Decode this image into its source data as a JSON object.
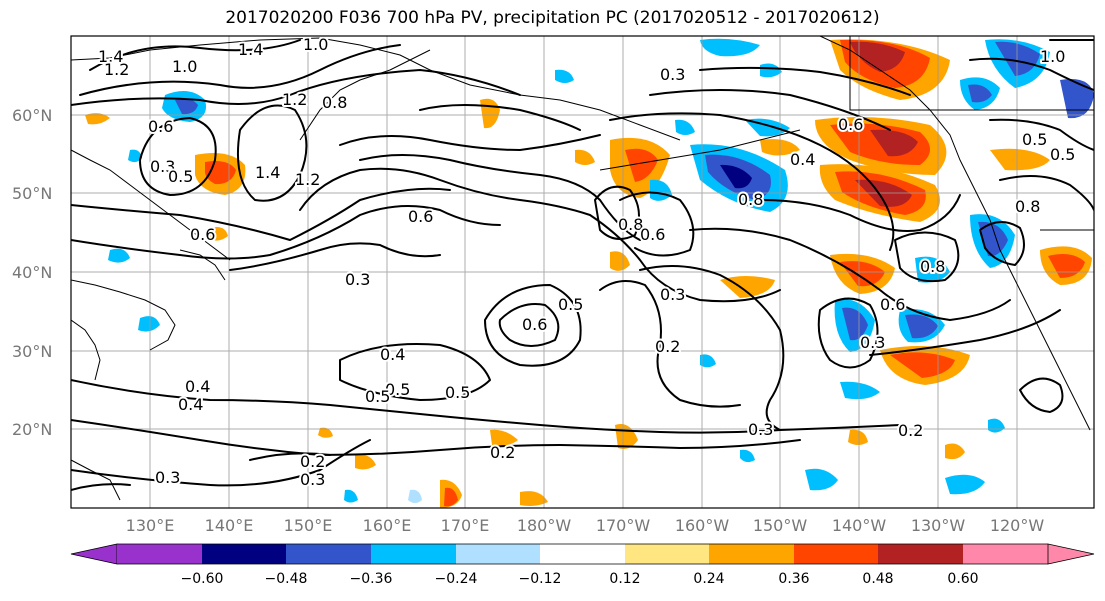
{
  "title": "2017020200 F036 700 hPa PV, precipitation PC (2017020512 - 2017020612)",
  "map": {
    "lat_ticks": [
      "60°N",
      "50°N",
      "40°N",
      "30°N",
      "20°N"
    ],
    "lon_ticks": [
      "130°E",
      "140°E",
      "150°E",
      "160°E",
      "170°E",
      "180°W",
      "170°W",
      "160°W",
      "150°W",
      "140°W",
      "130°W",
      "120°W"
    ],
    "contour_labels": [
      "1.4",
      "1.2",
      "1.0",
      "1.4",
      "1.0",
      "0.6",
      "1.2",
      "0.8",
      "0.3",
      "0.5",
      "1.4",
      "1.2",
      "0.6",
      "0.6",
      "0.3",
      "0.5",
      "0.6",
      "0.8",
      "0.3",
      "0.4",
      "0.5",
      "0.4",
      "0.8",
      "0.6",
      "0.5",
      "0.2",
      "0.3",
      "0.2",
      "0.3",
      "0.3",
      "0.6",
      "0.4",
      "0.5",
      "0.6",
      "0.8",
      "0.3",
      "0.2",
      "0.2",
      "1.0",
      "0.5",
      "0.5",
      "0.8",
      "0.4",
      "0.3"
    ]
  },
  "colorbar": {
    "ticks": [
      "−0.60",
      "−0.48",
      "−0.36",
      "−0.24",
      "−0.12",
      "0.12",
      "0.24",
      "0.36",
      "0.48",
      "0.60"
    ],
    "colors": [
      "#9932cc",
      "#000080",
      "#3355cc",
      "#00bfff",
      "#b0e0ff",
      "#ffffff",
      "#ffe680",
      "#ffa500",
      "#ff4500",
      "#b22222",
      "#ff88aa"
    ]
  }
}
